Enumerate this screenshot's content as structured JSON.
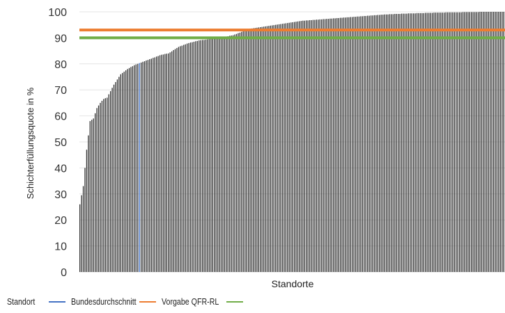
{
  "chart_data": {
    "type": "bar",
    "ylabel": "Schichterfüllungsquote in %",
    "xlabel": "Standorte",
    "ylim": [
      0,
      100
    ],
    "yticks": [
      "0",
      "10",
      "20",
      "30",
      "40",
      "50",
      "60",
      "70",
      "80",
      "90",
      "100"
    ],
    "bar_count": 250,
    "sorted_value_profile": {
      "index": [
        0,
        2,
        4,
        6,
        8,
        10,
        12,
        14,
        16,
        20,
        24,
        28,
        32,
        36,
        40,
        44,
        48,
        52,
        58,
        64,
        70,
        80,
        90,
        100,
        110,
        120,
        130,
        140,
        150,
        160,
        170,
        180,
        190,
        200,
        210,
        220,
        230,
        240,
        249
      ],
      "values": [
        26,
        33,
        47,
        58,
        59,
        63,
        65,
        66.5,
        67,
        72,
        76,
        78,
        79.5,
        80.5,
        81.5,
        82.5,
        83.5,
        84,
        86.5,
        88,
        89,
        89.8,
        91,
        93.5,
        94.5,
        95.5,
        96.5,
        97,
        97.5,
        98,
        98.5,
        99,
        99.3,
        99.5,
        99.7,
        99.8,
        99.9,
        100,
        100
      ]
    },
    "highlight_index": 35,
    "series": [
      {
        "name": "Standort",
        "color": "#1a1a1a"
      },
      {
        "name": "Bundesdurchschnitt",
        "color": "#4472c4"
      },
      {
        "name": "Vorgabe QFR-RL",
        "color": "#70ad47"
      }
    ],
    "reference_lines": [
      {
        "value": 93,
        "color": "#ed7d31"
      },
      {
        "value": 90,
        "color": "#70ad47"
      }
    ]
  }
}
